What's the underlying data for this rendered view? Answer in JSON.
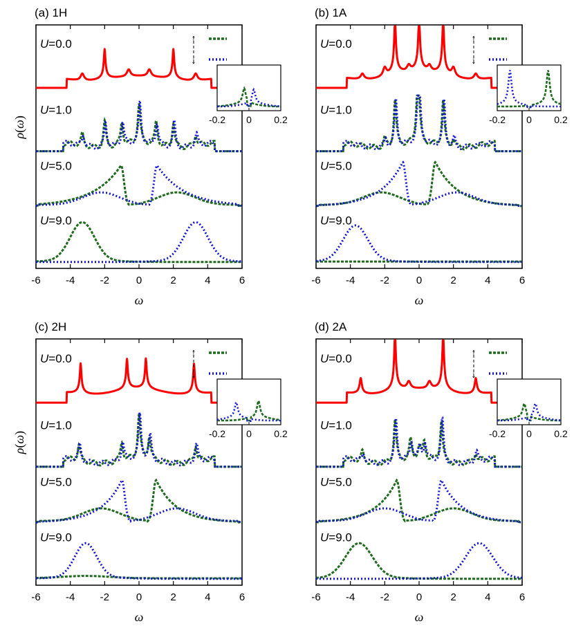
{
  "colors": {
    "up": "#1e6b1e",
    "down": "#1010dd",
    "u0": "#ff0000",
    "axis": "#000000"
  },
  "chart_data": [
    {
      "type": "line",
      "title": "(a) 1H",
      "xlabel": "ω",
      "ylabel": "ρ(ω)",
      "xlim": [
        -6,
        6
      ],
      "xticks": [
        "-6",
        "-4",
        "-2",
        "0",
        "2",
        "4",
        "6"
      ],
      "legend": {
        "placement": "top-right",
        "up_symbol": "↑",
        "down_symbol": "↓"
      },
      "panels": [
        {
          "label": "U=0.0",
          "u": "0.0",
          "shape": "vh",
          "band": 4.2,
          "bumps": [
            [
              -3.3,
              0.15
            ],
            [
              -0.6,
              0.15
            ],
            [
              0.6,
              0.15
            ],
            [
              3.3,
              0.15
            ]
          ],
          "spikes": [
            [
              -2.0,
              0.85
            ],
            [
              2.0,
              0.85
            ]
          ]
        },
        {
          "label": "U=1.0",
          "u": "1.0",
          "shape": "metal",
          "peaks": [
            [
              -2.0,
              0.55
            ],
            [
              -1.0,
              0.5
            ],
            [
              0.0,
              0.85
            ],
            [
              1.0,
              0.5
            ],
            [
              2.0,
              0.55
            ],
            [
              -3.3,
              0.25
            ],
            [
              3.3,
              0.25
            ]
          ]
        },
        {
          "label": "U=5.0",
          "u": "5.0",
          "shape": "gap",
          "spin_peak": "up",
          "edge": 1.05,
          "gap_half": 1.0,
          "height": 0.88,
          "decay": 1.6,
          "hump": 2.2
        },
        {
          "label": "U=9.0",
          "u": "9.0",
          "shape": "hubbard",
          "spin_peak": "up",
          "center": 3.3,
          "width": 1.0,
          "height": 0.82,
          "tail": 0.06
        }
      ],
      "inset": {
        "xlim": [
          -0.2,
          0.2
        ],
        "xticks": [
          "-0.2",
          "0",
          "0.2"
        ],
        "up_peak": -0.03,
        "down_peak": 0.03,
        "up_height": 0.55,
        "down_height": 0.5
      }
    },
    {
      "type": "line",
      "title": "(b) 1A",
      "xlabel": "ω",
      "ylabel": "",
      "xlim": [
        -6,
        6
      ],
      "xticks": [
        "-6",
        "-4",
        "-2",
        "0",
        "2",
        "4",
        "6"
      ],
      "legend": {
        "placement": "top-right",
        "up_symbol": "↑",
        "down_symbol": "↓"
      },
      "panels": [
        {
          "label": "U=0.0",
          "u": "0.0",
          "shape": "vh",
          "band": 4.2,
          "bumps": [
            [
              -3.3,
              0.12
            ],
            [
              -2.0,
              0.18
            ],
            [
              -0.6,
              0.12
            ],
            [
              0.6,
              0.12
            ],
            [
              2.0,
              0.18
            ],
            [
              3.3,
              0.12
            ]
          ],
          "spikes": [
            [
              -1.4,
              1.6
            ],
            [
              0.0,
              1.6
            ],
            [
              1.4,
              1.6
            ]
          ]
        },
        {
          "label": "U=1.0",
          "u": "1.0",
          "shape": "metal",
          "peaks": [
            [
              -1.4,
              1.0
            ],
            [
              -0.1,
              1.0
            ],
            [
              1.4,
              1.0
            ],
            [
              0.0,
              0.6
            ],
            [
              -2.0,
              0.2
            ],
            [
              2.0,
              0.2
            ]
          ]
        },
        {
          "label": "U=5.0",
          "u": "5.0",
          "shape": "gap",
          "spin_peak": "down",
          "edge": 0.95,
          "gap_half": 0.9,
          "height": 0.95,
          "decay": 1.3,
          "hump": 2.2
        },
        {
          "label": "U=9.0",
          "u": "9.0",
          "shape": "hubbard",
          "spin_peak": "down",
          "center": 3.7,
          "width": 1.0,
          "height": 0.75,
          "tail": 0.0
        }
      ],
      "inset": {
        "xlim": [
          -0.2,
          0.2
        ],
        "xticks": [
          "-0.2",
          "0",
          "0.2"
        ],
        "up_peak": 0.12,
        "down_peak": -0.12,
        "up_height": 1.2,
        "down_height": 1.2
      }
    },
    {
      "type": "line",
      "title": "(c) 2H",
      "xlabel": "ω",
      "ylabel": "ρ(ω)",
      "xlim": [
        -6,
        6
      ],
      "xticks": [
        "-6",
        "-4",
        "-2",
        "0",
        "2",
        "4",
        "6"
      ],
      "legend": {
        "placement": "top-right",
        "up_symbol": "↑",
        "down_symbol": "↓"
      },
      "panels": [
        {
          "label": "U=0.0",
          "u": "0.0",
          "shape": "vh",
          "band": 4.2,
          "bumps": [],
          "spikes": [
            [
              -3.4,
              0.85
            ],
            [
              -0.7,
              0.85
            ],
            [
              0.4,
              0.85
            ],
            [
              3.2,
              0.85
            ]
          ]
        },
        {
          "label": "U=1.0",
          "u": "1.0",
          "shape": "metal",
          "peaks": [
            [
              -3.5,
              0.35
            ],
            [
              -1.0,
              0.4
            ],
            [
              0.0,
              0.95
            ],
            [
              0.6,
              0.5
            ],
            [
              3.3,
              0.35
            ]
          ]
        },
        {
          "label": "U=5.0",
          "u": "5.0",
          "shape": "gap",
          "spin_peak": "down",
          "edge": 1.0,
          "gap_half": 0.9,
          "height": 0.9,
          "decay": 1.2,
          "hump": 2.2
        },
        {
          "label": "U=9.0",
          "u": "9.0",
          "shape": "hubbard",
          "spin_peak": "down",
          "center": 3.1,
          "width": 0.9,
          "height": 0.72,
          "tail": 0.05
        }
      ],
      "inset": {
        "xlim": [
          -0.2,
          0.2
        ],
        "xticks": [
          "-0.2",
          "0",
          "0.2"
        ],
        "up_peak": 0.06,
        "down_peak": -0.08,
        "up_height": 0.6,
        "down_height": 0.55
      }
    },
    {
      "type": "line",
      "title": "(d) 2A",
      "xlabel": "ω",
      "ylabel": "",
      "xlim": [
        -6,
        6
      ],
      "xticks": [
        "-6",
        "-4",
        "-2",
        "0",
        "2",
        "4",
        "6"
      ],
      "legend": {
        "placement": "top-right",
        "up_symbol": "↑",
        "down_symbol": "↓"
      },
      "panels": [
        {
          "label": "U=0.0",
          "u": "0.0",
          "shape": "vh",
          "band": 4.2,
          "bumps": [
            [
              -0.6,
              0.15
            ],
            [
              0.6,
              0.15
            ]
          ],
          "spikes": [
            [
              -1.4,
              1.6
            ],
            [
              1.4,
              1.6
            ]
          ],
          "mid_spikes": [
            [
              -3.4,
              0.35
            ],
            [
              3.3,
              0.35
            ]
          ]
        },
        {
          "label": "U=1.0",
          "u": "1.0",
          "shape": "metal",
          "peaks": [
            [
              -1.4,
              0.9
            ],
            [
              1.3,
              0.9
            ],
            [
              -0.5,
              0.4
            ],
            [
              0.3,
              0.35
            ],
            [
              0.0,
              0.25
            ],
            [
              -3.3,
              0.2
            ],
            [
              3.3,
              0.2
            ]
          ]
        },
        {
          "label": "U=5.0",
          "u": "5.0",
          "shape": "gap",
          "spin_peak": "up",
          "edge": 1.3,
          "gap_half": 1.2,
          "height": 0.9,
          "decay": 1.2,
          "hump": 2.0
        },
        {
          "label": "U=9.0",
          "u": "9.0",
          "shape": "hubbard",
          "spin_peak": "up",
          "center": 3.5,
          "width": 1.1,
          "height": 0.72,
          "tail": 0.02
        }
      ],
      "inset": {
        "xlim": [
          -0.2,
          0.2
        ],
        "xticks": [
          "-0.2",
          "0",
          "0.2"
        ],
        "up_peak": -0.03,
        "down_peak": 0.04,
        "up_height": 0.5,
        "down_height": 0.5
      }
    }
  ]
}
